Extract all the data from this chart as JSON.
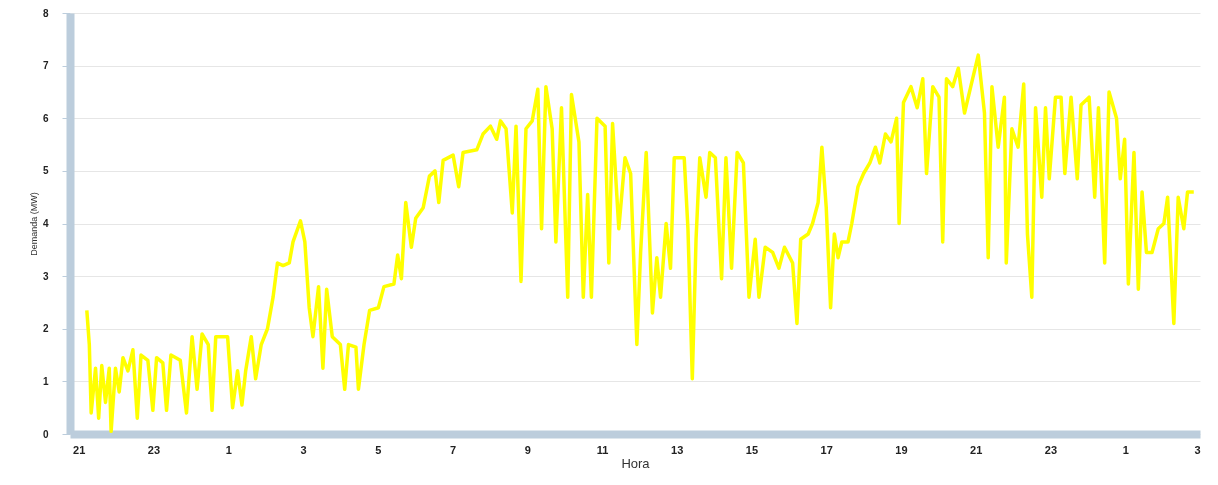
{
  "chart_data": {
    "type": "line",
    "xlabel": "Hora",
    "ylabel": "Demanda (MW)",
    "xlim": [
      "--01-01T20:46",
      "--01-03T03:00"
    ],
    "ylim": [
      0,
      8
    ],
    "yticks": [
      0,
      1,
      2,
      3,
      4,
      5,
      6,
      7,
      8
    ],
    "xticks": [
      {
        "value": "--01-01T21:00",
        "label": "21"
      },
      {
        "value": "--01-01T23:00",
        "label": "23"
      },
      {
        "value": "--01-02T01:00",
        "label": "1"
      },
      {
        "value": "--01-02T03:00",
        "label": "3"
      },
      {
        "value": "--01-02T05:00",
        "label": "5"
      },
      {
        "value": "--01-02T07:00",
        "label": "7"
      },
      {
        "value": "--01-02T09:00",
        "label": "9"
      },
      {
        "value": "--01-02T11:00",
        "label": "11"
      },
      {
        "value": "--01-02T13:00",
        "label": "13"
      },
      {
        "value": "--01-02T15:00",
        "label": "15"
      },
      {
        "value": "--01-02T17:00",
        "label": "17"
      },
      {
        "value": "--01-02T19:00",
        "label": "19"
      },
      {
        "value": "--01-02T21:00",
        "label": "21"
      },
      {
        "value": "--01-02T23:00",
        "label": "23"
      },
      {
        "value": "--01-03T01:00",
        "label": "1"
      },
      {
        "value": "--01-03T03:00",
        "label": "3"
      }
    ],
    "grid": "y",
    "line_style": "solid",
    "series": [
      {
        "color": "#ffff00",
        "x": [
          "--01-01T21:13",
          "--01-01T21:17",
          "--01-01T21:20",
          "--01-01T21:27",
          "--01-01T21:32",
          "--01-01T21:37",
          "--01-01T21:43",
          "--01-01T21:49",
          "--01-01T21:52",
          "--01-01T21:59",
          "--01-01T22:05",
          "--01-01T22:11",
          "--01-01T22:19",
          "--01-01T22:27",
          "--01-01T22:34",
          "--01-01T22:40",
          "--01-01T22:51",
          "--01-01T22:59",
          "--01-01T23:05",
          "--01-01T23:15",
          "--01-01T23:21",
          "--01-01T23:28",
          "--01-01T23:43",
          "--01-01T23:53",
          "--01-02T00:02",
          "--01-02T00:10",
          "--01-02T00:18",
          "--01-02T00:28",
          "--01-02T00:34",
          "--01-02T00:40",
          "--01-02T00:59",
          "--01-02T01:07",
          "--01-02T01:15",
          "--01-02T01:22",
          "--01-02T01:28",
          "--01-02T01:37",
          "--01-02T01:44",
          "--01-02T01:53",
          "--01-02T02:03",
          "--01-02T02:12",
          "--01-02T02:19",
          "--01-02T02:28",
          "--01-02T02:38",
          "--01-02T02:44",
          "--01-02T02:56",
          "--01-02T03:03",
          "--01-02T03:10",
          "--01-02T03:16",
          "--01-02T03:25",
          "--01-02T03:32",
          "--01-02T03:38",
          "--01-02T03:47",
          "--01-02T04:00",
          "--01-02T04:07",
          "--01-02T04:13",
          "--01-02T04:25",
          "--01-02T04:29",
          "--01-02T04:38",
          "--01-02T04:47",
          "--01-02T05:01",
          "--01-02T05:10",
          "--01-02T05:26",
          "--01-02T05:32",
          "--01-02T05:38",
          "--01-02T05:45",
          "--01-02T05:54",
          "--01-02T06:01",
          "--01-02T06:13",
          "--01-02T06:23",
          "--01-02T06:32",
          "--01-02T06:38",
          "--01-02T06:45",
          "--01-02T07:01",
          "--01-02T07:10",
          "--01-02T07:17",
          "--01-02T07:39",
          "--01-02T07:49",
          "--01-02T08:01",
          "--01-02T08:11",
          "--01-02T08:17",
          "--01-02T08:26",
          "--01-02T08:36",
          "--01-02T08:42",
          "--01-02T08:50",
          "--01-02T08:58",
          "--01-02T09:08",
          "--01-02T09:17",
          "--01-02T09:23",
          "--01-02T09:30",
          "--01-02T09:40",
          "--01-02T09:46",
          "--01-02T09:55",
          "--01-02T10:05",
          "--01-02T10:11",
          "--01-02T10:23",
          "--01-02T10:30",
          "--01-02T10:37",
          "--01-02T10:43",
          "--01-02T10:52",
          "--01-02T11:05",
          "--01-02T11:11",
          "--01-02T11:17",
          "--01-02T11:27",
          "--01-02T11:37",
          "--01-02T11:46",
          "--01-02T11:56",
          "--01-02T12:02",
          "--01-02T12:11",
          "--01-02T12:21",
          "--01-02T12:28",
          "--01-02T12:34",
          "--01-02T12:43",
          "--01-02T12:50",
          "--01-02T12:56",
          "--01-02T13:12",
          "--01-02T13:18",
          "--01-02T13:25",
          "--01-02T13:31",
          "--01-02T13:37",
          "--01-02T13:47",
          "--01-02T13:53",
          "--01-02T14:02",
          "--01-02T14:12",
          "--01-02T14:19",
          "--01-02T14:28",
          "--01-02T14:37",
          "--01-02T14:47",
          "--01-02T14:56",
          "--01-02T15:06",
          "--01-02T15:12",
          "--01-02T15:22",
          "--01-02T15:34",
          "--01-02T15:44",
          "--01-02T15:53",
          "--01-02T16:06",
          "--01-02T16:13",
          "--01-02T16:19",
          "--01-02T16:31",
          "--01-02T16:38",
          "--01-02T16:47",
          "--01-02T16:53",
          "--01-02T17:00",
          "--01-02T17:07",
          "--01-02T17:13",
          "--01-02T17:19",
          "--01-02T17:25",
          "--01-02T17:35",
          "--01-02T17:41",
          "--01-02T17:51",
          "--01-02T18:00",
          "--01-02T18:10",
          "--01-02T18:19",
          "--01-02T18:26",
          "--01-02T18:35",
          "--01-02T18:44",
          "--01-02T18:53",
          "--01-02T18:57",
          "--01-02T19:04",
          "--01-02T19:16",
          "--01-02T19:26",
          "--01-02T19:35",
          "--01-02T19:41",
          "--01-02T19:51",
          "--01-02T20:01",
          "--01-02T20:07",
          "--01-02T20:13",
          "--01-02T20:23",
          "--01-02T20:32",
          "--01-02T20:42",
          "--01-02T20:52",
          "--01-02T21:04",
          "--01-02T21:14",
          "--01-02T21:20",
          "--01-02T21:26",
          "--01-02T21:36",
          "--01-02T21:46",
          "--01-02T21:49",
          "--01-02T21:58",
          "--01-02T22:08",
          "--01-02T22:17",
          "--01-02T22:23",
          "--01-02T22:30",
          "--01-02T22:36",
          "--01-02T22:46",
          "--01-02T22:52",
          "--01-02T22:58",
          "--01-02T23:08",
          "--01-02T23:17",
          "--01-02T23:23",
          "--01-02T23:33",
          "--01-02T23:43",
          "--01-02T23:49",
          "--01-03T00:02",
          "--01-03T00:11",
          "--01-03T00:17",
          "--01-03T00:27",
          "--01-03T00:34",
          "--01-03T00:46",
          "--01-03T00:52",
          "--01-03T00:59",
          "--01-03T01:05",
          "--01-03T01:14",
          "--01-03T01:21",
          "--01-03T01:27",
          "--01-03T01:34",
          "--01-03T01:43",
          "--01-03T01:53",
          "--01-03T02:02",
          "--01-03T02:08",
          "--01-03T02:18",
          "--01-03T02:25",
          "--01-03T02:34",
          "--01-03T02:40",
          "--01-03T02:50"
        ],
        "values": [
          2.35,
          1.7,
          0.4,
          1.25,
          0.3,
          1.3,
          0.6,
          1.25,
          0.05,
          1.25,
          0.8,
          1.45,
          1.2,
          1.6,
          0.3,
          1.5,
          1.4,
          0.45,
          1.45,
          1.35,
          0.45,
          1.5,
          1.4,
          0.4,
          1.85,
          0.85,
          1.9,
          1.7,
          0.45,
          1.85,
          1.85,
          0.5,
          1.2,
          0.55,
          1.2,
          1.85,
          1.05,
          1.7,
          2.0,
          2.6,
          3.25,
          3.2,
          3.25,
          3.65,
          4.05,
          3.65,
          2.4,
          1.85,
          2.8,
          1.25,
          2.75,
          1.85,
          1.7,
          0.85,
          1.7,
          1.65,
          0.85,
          1.7,
          2.35,
          2.4,
          2.8,
          2.85,
          3.4,
          2.95,
          4.4,
          3.55,
          4.1,
          4.3,
          4.9,
          5.0,
          4.4,
          5.2,
          5.3,
          4.7,
          5.35,
          5.4,
          5.7,
          5.85,
          5.6,
          5.95,
          5.8,
          4.2,
          5.85,
          2.9,
          5.8,
          5.95,
          6.55,
          3.9,
          6.6,
          5.8,
          3.65,
          6.2,
          2.6,
          6.45,
          5.55,
          2.6,
          4.55,
          2.6,
          6.0,
          5.85,
          3.25,
          5.9,
          3.9,
          5.25,
          4.95,
          1.7,
          3.45,
          5.35,
          2.3,
          3.35,
          2.6,
          4.0,
          3.15,
          5.25,
          5.25,
          3.9,
          1.05,
          3.7,
          5.25,
          4.5,
          5.35,
          5.25,
          2.95,
          5.25,
          3.15,
          5.35,
          5.15,
          2.6,
          3.7,
          2.6,
          3.55,
          3.45,
          3.15,
          3.55,
          3.25,
          2.1,
          3.7,
          3.8,
          4.0,
          4.4,
          5.45,
          4.3,
          2.4,
          3.8,
          3.35,
          3.65,
          3.65,
          4.0,
          4.7,
          4.95,
          5.15,
          5.45,
          5.15,
          5.7,
          5.55,
          6.0,
          4.0,
          6.3,
          6.6,
          6.2,
          6.75,
          4.95,
          6.6,
          6.4,
          3.65,
          6.75,
          6.6,
          6.95,
          6.1,
          6.6,
          7.2,
          6.1,
          3.35,
          6.6,
          5.45,
          6.4,
          3.25,
          5.8,
          5.45,
          6.65,
          3.8,
          2.6,
          6.2,
          4.5,
          6.2,
          4.85,
          6.4,
          6.4,
          4.95,
          6.4,
          4.85,
          6.25,
          6.4,
          4.5,
          6.2,
          3.25,
          6.5,
          6.0,
          4.85,
          5.6,
          2.85,
          5.35,
          2.75,
          4.6,
          3.45,
          3.45,
          3.9,
          4.0,
          4.5,
          2.1,
          4.5,
          3.9,
          4.6,
          4.6
        ]
      }
    ]
  }
}
